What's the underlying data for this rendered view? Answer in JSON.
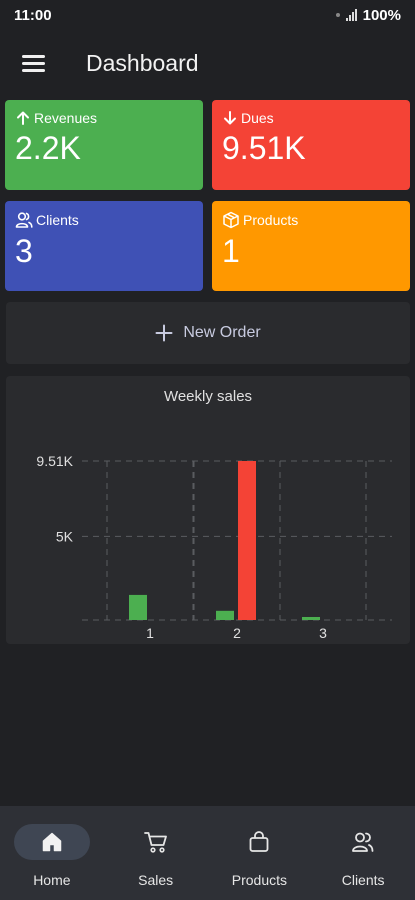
{
  "status_bar": {
    "time": "11:00",
    "battery": "100%"
  },
  "header": {
    "title": "Dashboard",
    "menu_icon": "hamburger-menu-icon"
  },
  "cards": [
    {
      "label": "Revenues",
      "value": "2.2K",
      "icon": "arrow-up-icon",
      "color": "#4caf50"
    },
    {
      "label": "Dues",
      "value": "9.51K",
      "icon": "arrow-down-icon",
      "color": "#f44336"
    },
    {
      "label": "Clients",
      "value": "3",
      "icon": "people-icon",
      "color": "#3f51b5"
    },
    {
      "label": "Products",
      "value": "1",
      "icon": "box-icon",
      "color": "#ff9800"
    }
  ],
  "new_order": {
    "label": "New Order",
    "icon": "plus-icon"
  },
  "chart_data": {
    "type": "bar",
    "title": "Weekly sales",
    "categories": [
      "1",
      "2",
      "3"
    ],
    "series": [
      {
        "color": "#4caf50",
        "values": [
          1500,
          550,
          180
        ]
      },
      {
        "color": "#f44336",
        "values": [
          0,
          9510,
          0
        ]
      }
    ],
    "yticks": [
      {
        "value": 5000,
        "label": "5K"
      },
      {
        "value": 9510,
        "label": "9.51K"
      }
    ],
    "ylim": [
      0,
      9510
    ],
    "grid": true
  },
  "bottom_nav": [
    {
      "label": "Home",
      "icon": "home-icon",
      "active": true
    },
    {
      "label": "Sales",
      "icon": "cart-icon",
      "active": false
    },
    {
      "label": "Products",
      "icon": "shopping-bag-icon",
      "active": false
    },
    {
      "label": "Clients",
      "icon": "people-icon",
      "active": false
    }
  ]
}
